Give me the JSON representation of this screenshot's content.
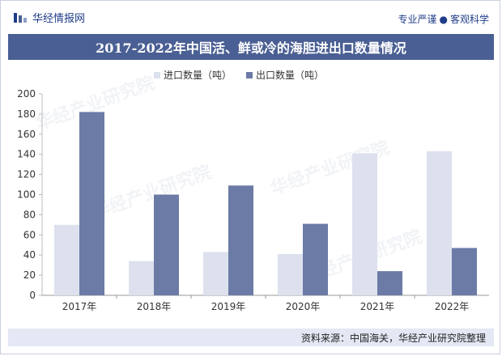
{
  "header": {
    "brand": "华经情报网",
    "slogan_left": "专业严谨",
    "slogan_dot": "●",
    "slogan_right": "客观科学"
  },
  "footer": {
    "source": "资料来源：中国海关，华经产业研究院整理"
  },
  "watermark": "华经产业研究院",
  "colors": {
    "accent": "#4a5f93",
    "import": "#dde1ee",
    "export": "#6b7ba6",
    "footer_bg": "#e3e8f4"
  },
  "chart_data": {
    "type": "bar",
    "title": "2017-2022年中国活、鲜或冷的海胆进出口数量情况",
    "categories": [
      "2017年",
      "2018年",
      "2019年",
      "2020年",
      "2021年",
      "2022年"
    ],
    "series": [
      {
        "name": "进口数量（吨）",
        "values": [
          70,
          34,
          43,
          41,
          141,
          143
        ]
      },
      {
        "name": "出口数量（吨）",
        "values": [
          182,
          100,
          109,
          71,
          24,
          47
        ]
      }
    ],
    "ylim": [
      0,
      200
    ],
    "yticks": [
      0,
      20,
      40,
      60,
      80,
      100,
      120,
      140,
      160,
      180,
      200
    ],
    "xlabel": "",
    "ylabel": "",
    "grid": false,
    "legend": "top"
  }
}
